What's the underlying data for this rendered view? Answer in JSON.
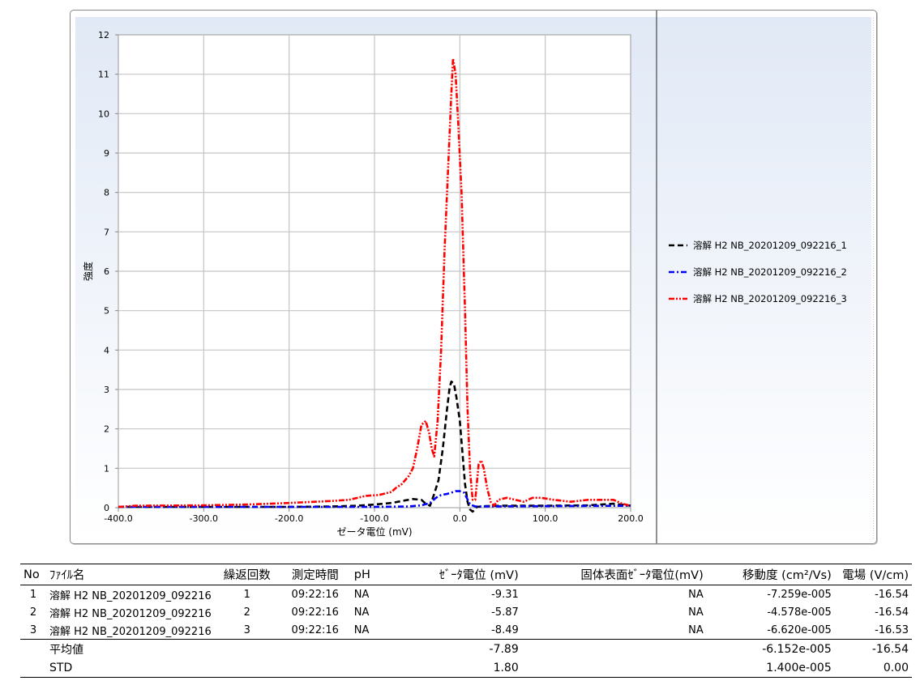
{
  "chart_data": {
    "type": "line",
    "title": "",
    "xlabel": "ゼータ電位 (mV)",
    "ylabel": "強度",
    "xlim": [
      -400,
      200
    ],
    "ylim": [
      0,
      12
    ],
    "x_ticks": [
      "-400.0",
      "-300.0",
      "-200.0",
      "-100.0",
      "0.0",
      "100.0",
      "200.0"
    ],
    "y_ticks": [
      "0",
      "1",
      "2",
      "3",
      "4",
      "5",
      "6",
      "7",
      "8",
      "9",
      "10",
      "11",
      "12"
    ],
    "grid": true,
    "legend_position": "right",
    "series": [
      {
        "name": "溶解 H2 NB_20201209_092216_1",
        "color": "#000000",
        "line_style": "dash",
        "points": [
          [
            -400,
            0.02
          ],
          [
            -300,
            0.02
          ],
          [
            -200,
            0.02
          ],
          [
            -150,
            0.03
          ],
          [
            -120,
            0.05
          ],
          [
            -100,
            0.08
          ],
          [
            -80,
            0.12
          ],
          [
            -65,
            0.18
          ],
          [
            -55,
            0.22
          ],
          [
            -45,
            0.2
          ],
          [
            -40,
            0.1
          ],
          [
            -35,
            0.05
          ],
          [
            -30,
            0.35
          ],
          [
            -25,
            0.7
          ],
          [
            -20,
            1.5
          ],
          [
            -15,
            2.5
          ],
          [
            -12,
            3.05
          ],
          [
            -10,
            3.2
          ],
          [
            -7,
            3.15
          ],
          [
            -4,
            2.8
          ],
          [
            0,
            2.2
          ],
          [
            3,
            1.4
          ],
          [
            6,
            0.6
          ],
          [
            9,
            0.15
          ],
          [
            12,
            -0.05
          ],
          [
            15,
            -0.1
          ],
          [
            20,
            0.02
          ],
          [
            30,
            0.04
          ],
          [
            50,
            0.05
          ],
          [
            100,
            0.05
          ],
          [
            150,
            0.06
          ],
          [
            180,
            0.1
          ],
          [
            200,
            0.05
          ]
        ]
      },
      {
        "name": "溶解 H2 NB_20201209_092216_2",
        "color": "#0000ff",
        "line_style": "dashdot",
        "points": [
          [
            -400,
            0.02
          ],
          [
            -200,
            0.02
          ],
          [
            -100,
            0.02
          ],
          [
            -60,
            0.03
          ],
          [
            -45,
            0.06
          ],
          [
            -35,
            0.12
          ],
          [
            -28,
            0.25
          ],
          [
            -22,
            0.32
          ],
          [
            -15,
            0.35
          ],
          [
            -10,
            0.38
          ],
          [
            -5,
            0.42
          ],
          [
            0,
            0.42
          ],
          [
            5,
            0.38
          ],
          [
            8,
            0.25
          ],
          [
            12,
            0.08
          ],
          [
            18,
            0.03
          ],
          [
            30,
            0.03
          ],
          [
            100,
            0.04
          ],
          [
            200,
            0.05
          ]
        ]
      },
      {
        "name": "溶解 H2 NB_20201209_092216_3",
        "color": "#ff0000",
        "line_style": "dashdotdot",
        "points": [
          [
            -400,
            0.02
          ],
          [
            -380,
            0.05
          ],
          [
            -300,
            0.06
          ],
          [
            -250,
            0.08
          ],
          [
            -200,
            0.12
          ],
          [
            -150,
            0.17
          ],
          [
            -130,
            0.2
          ],
          [
            -110,
            0.3
          ],
          [
            -95,
            0.32
          ],
          [
            -80,
            0.4
          ],
          [
            -75,
            0.5
          ],
          [
            -68,
            0.6
          ],
          [
            -60,
            0.8
          ],
          [
            -55,
            1.0
          ],
          [
            -50,
            1.5
          ],
          [
            -45,
            2.1
          ],
          [
            -40,
            2.2
          ],
          [
            -36,
            1.9
          ],
          [
            -33,
            1.5
          ],
          [
            -30,
            1.3
          ],
          [
            -26,
            2.2
          ],
          [
            -22,
            4.0
          ],
          [
            -18,
            6.5
          ],
          [
            -14,
            8.5
          ],
          [
            -10,
            10.5
          ],
          [
            -8,
            11.4
          ],
          [
            -5,
            11.0
          ],
          [
            -2,
            9.8
          ],
          [
            2,
            8.0
          ],
          [
            6,
            5.0
          ],
          [
            9,
            2.5
          ],
          [
            12,
            0.9
          ],
          [
            15,
            0.2
          ],
          [
            18,
            0.2
          ],
          [
            22,
            1.1
          ],
          [
            25,
            1.2
          ],
          [
            28,
            1.0
          ],
          [
            32,
            0.5
          ],
          [
            36,
            0.15
          ],
          [
            40,
            0.05
          ],
          [
            45,
            0.2
          ],
          [
            55,
            0.25
          ],
          [
            65,
            0.2
          ],
          [
            75,
            0.15
          ],
          [
            85,
            0.25
          ],
          [
            95,
            0.25
          ],
          [
            110,
            0.2
          ],
          [
            130,
            0.15
          ],
          [
            150,
            0.2
          ],
          [
            170,
            0.2
          ],
          [
            180,
            0.2
          ],
          [
            190,
            0.1
          ],
          [
            200,
            0.05
          ]
        ]
      }
    ]
  },
  "table": {
    "headers": {
      "no": "No",
      "file": "ﾌｧｲﾙ名",
      "repeat": "繰返回数",
      "time": "測定時間",
      "ph": "pH",
      "zeta": "ｾﾞｰﾀ電位 (mV)",
      "solid": "固体表面ｾﾞｰﾀ電位(mV)",
      "mobility": "移動度 (cm²/Vs)",
      "field": "電場 (V/cm)"
    },
    "rows": [
      {
        "no": "1",
        "file": "溶解 H2 NB_20201209_092216",
        "repeat": "1",
        "time": "09:22:16",
        "ph": "NA",
        "zeta": "-9.31",
        "solid": "NA",
        "mobility": "-7.259e-005",
        "field": "-16.54"
      },
      {
        "no": "2",
        "file": "溶解 H2 NB_20201209_092216",
        "repeat": "2",
        "time": "09:22:16",
        "ph": "NA",
        "zeta": "-5.87",
        "solid": "NA",
        "mobility": "-4.578e-005",
        "field": "-16.54"
      },
      {
        "no": "3",
        "file": "溶解 H2 NB_20201209_092216",
        "repeat": "3",
        "time": "09:22:16",
        "ph": "NA",
        "zeta": "-8.49",
        "solid": "NA",
        "mobility": "-6.620e-005",
        "field": "-16.53"
      }
    ],
    "summary": [
      {
        "label": "平均値",
        "zeta": "-7.89",
        "mobility": "-6.152e-005",
        "field": "-16.54"
      },
      {
        "label": "STD",
        "zeta": "1.80",
        "mobility": "1.400e-005",
        "field": "0.00"
      }
    ]
  }
}
